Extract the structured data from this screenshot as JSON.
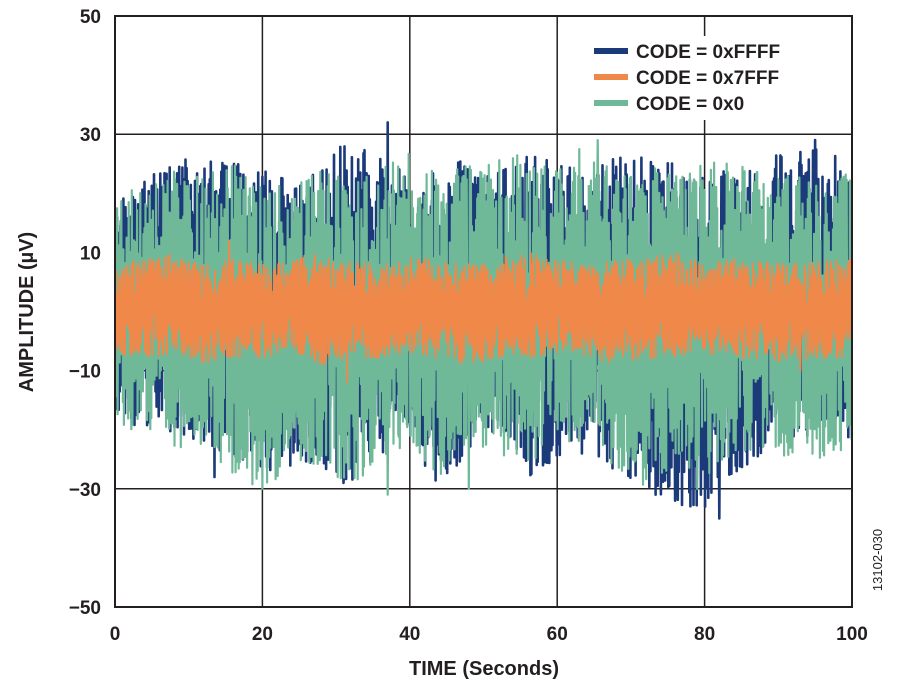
{
  "chart_data": {
    "type": "line",
    "title": "",
    "xlabel": "TIME (Seconds)",
    "ylabel": "AMPLITUDE (µV)",
    "xlim": [
      0,
      100
    ],
    "ylim": [
      -50,
      50
    ],
    "x_ticks": [
      0,
      20,
      40,
      60,
      80,
      100
    ],
    "x_tick_labels": [
      "0",
      "20",
      "40",
      "60",
      "80",
      "100"
    ],
    "y_ticks": [
      50,
      30,
      10,
      -10,
      -30,
      -50
    ],
    "y_tick_labels": [
      "50",
      "30",
      "10",
      "−10",
      "−30",
      "−50"
    ],
    "grid": true,
    "legend_position": "top-right",
    "figure_id": "13102-030",
    "series": [
      {
        "name": "CODE = 0xFFFF",
        "color": "#1b3a7a",
        "band_min": [
          -18,
          -20,
          -21,
          -22,
          -25,
          -28,
          -26,
          -27,
          -29,
          -25,
          -22,
          -31,
          -23,
          -20,
          -28,
          -25,
          -24,
          -27,
          -30,
          -33,
          -35,
          -28,
          -24,
          -22,
          -20,
          -22
        ],
        "band_max": [
          20,
          23,
          25,
          27,
          26,
          24,
          22,
          24,
          31,
          28,
          22,
          24,
          26,
          24,
          27,
          25,
          24,
          26,
          27,
          25,
          23,
          25,
          26,
          27,
          29,
          24
        ],
        "peaks": [
          [
            37,
            32
          ],
          [
            82,
            -35
          ],
          [
            95,
            29
          ],
          [
            76,
            -32
          ],
          [
            13.5,
            -28
          ],
          [
            31,
            -29
          ]
        ]
      },
      {
        "name": "CODE = 0x7FFF",
        "color": "#f0884a",
        "band_min": [
          -7,
          -8,
          -7,
          -9,
          -8,
          -8,
          -7,
          -9,
          -8,
          -8,
          -7,
          -8,
          -9,
          -8,
          -8,
          -7,
          -8,
          -9,
          -8,
          -8,
          -7,
          -8,
          -8,
          -9,
          -8,
          -8
        ],
        "band_max": [
          8,
          9,
          10,
          8,
          9,
          8,
          9,
          10,
          9,
          8,
          9,
          9,
          8,
          9,
          10,
          9,
          8,
          9,
          9,
          10,
          8,
          9,
          9,
          8,
          9,
          9
        ],
        "peaks": [
          [
            15.5,
            12
          ],
          [
            31.5,
            -12
          ],
          [
            93,
            -10
          ]
        ]
      },
      {
        "name": "CODE = 0x0",
        "color": "#6fb898",
        "band_min": [
          -20,
          -22,
          -24,
          -23,
          -28,
          -30,
          -27,
          -26,
          -30,
          -25,
          -24,
          -28,
          -22,
          -24,
          -26,
          -23,
          -22,
          -27,
          -30,
          -26,
          -28,
          -24,
          -23,
          -25,
          -26,
          -22
        ],
        "band_max": [
          20,
          22,
          24,
          23,
          25,
          22,
          21,
          24,
          22,
          24,
          27,
          23,
          25,
          26,
          27,
          24,
          29,
          23,
          25,
          23,
          26,
          25,
          24,
          23,
          22,
          24
        ],
        "peaks": [
          [
            20,
            -30
          ],
          [
            37,
            -31
          ],
          [
            79,
            -30
          ],
          [
            65.5,
            29
          ],
          [
            48,
            -30
          ]
        ]
      }
    ]
  }
}
